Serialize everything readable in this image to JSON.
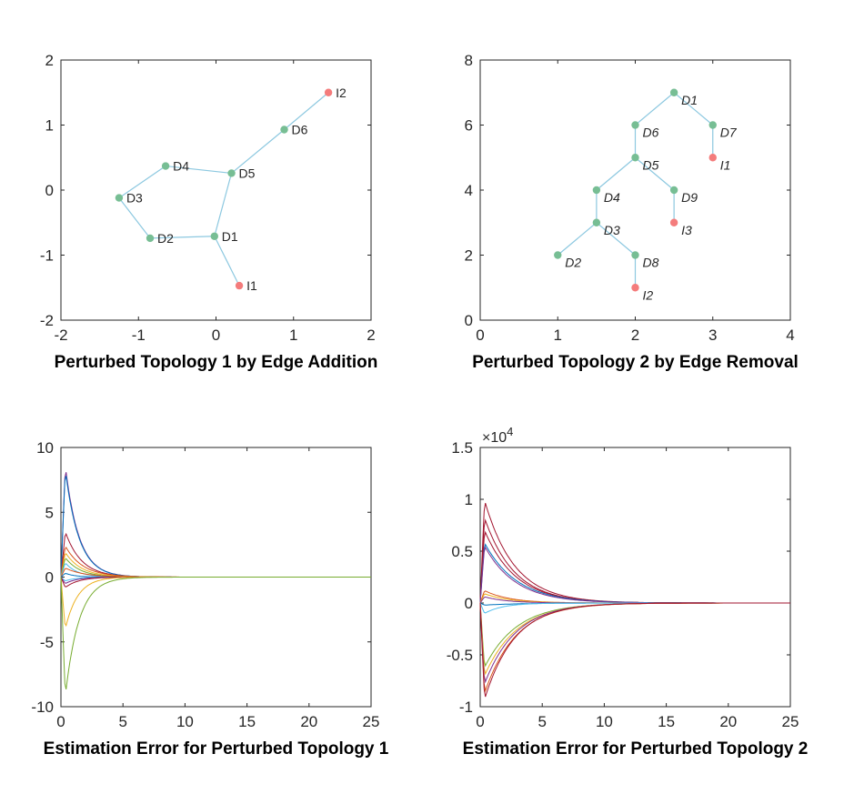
{
  "chart_data": [
    {
      "type": "scatter",
      "title": "Perturbed Topology 1 by Edge Addition",
      "xlim": [
        -2,
        2
      ],
      "ylim": [
        -2,
        2
      ],
      "xticks": [
        "-2",
        "-1",
        "0",
        "1",
        "2"
      ],
      "yticks": [
        "-2",
        "-1",
        "0",
        "1",
        "2"
      ],
      "node_color": "#77BE94",
      "input_color": "#F47C7C",
      "edge_color": "#8CC8E0",
      "nodes": [
        {
          "label": "I2",
          "x": 1.45,
          "y": 1.5,
          "kind": "input"
        },
        {
          "label": "D6",
          "x": 0.88,
          "y": 0.93,
          "kind": "node"
        },
        {
          "label": "D5",
          "x": 0.2,
          "y": 0.26,
          "kind": "node"
        },
        {
          "label": "D4",
          "x": -0.65,
          "y": 0.37,
          "kind": "node"
        },
        {
          "label": "D3",
          "x": -1.25,
          "y": -0.12,
          "kind": "node"
        },
        {
          "label": "D2",
          "x": -0.85,
          "y": -0.74,
          "kind": "node"
        },
        {
          "label": "D1",
          "x": -0.02,
          "y": -0.71,
          "kind": "node"
        },
        {
          "label": "I1",
          "x": 0.3,
          "y": -1.47,
          "kind": "input"
        }
      ],
      "edges": [
        [
          "I2",
          "D6"
        ],
        [
          "D6",
          "D5"
        ],
        [
          "D5",
          "D4"
        ],
        [
          "D4",
          "D3"
        ],
        [
          "D3",
          "D2"
        ],
        [
          "D2",
          "D1"
        ],
        [
          "D1",
          "D5"
        ],
        [
          "D1",
          "I1"
        ]
      ]
    },
    {
      "type": "scatter",
      "title": "Perturbed Topology 2 by Edge Removal",
      "xlim": [
        0,
        4
      ],
      "ylim": [
        0,
        8
      ],
      "xticks": [
        "0",
        "1",
        "2",
        "3",
        "4"
      ],
      "yticks": [
        "0",
        "2",
        "4",
        "6",
        "8"
      ],
      "node_color": "#77BE94",
      "input_color": "#F47C7C",
      "edge_color": "#8CC8E0",
      "nodes": [
        {
          "label": "D1",
          "x": 2.5,
          "y": 7,
          "kind": "node"
        },
        {
          "label": "D7",
          "x": 3,
          "y": 6,
          "kind": "node"
        },
        {
          "label": "I1",
          "x": 3,
          "y": 5,
          "kind": "input"
        },
        {
          "label": "D6",
          "x": 2,
          "y": 6,
          "kind": "node"
        },
        {
          "label": "D5",
          "x": 2,
          "y": 5,
          "kind": "node"
        },
        {
          "label": "D9",
          "x": 2.5,
          "y": 4,
          "kind": "node"
        },
        {
          "label": "I3",
          "x": 2.5,
          "y": 3,
          "kind": "input"
        },
        {
          "label": "D4",
          "x": 1.5,
          "y": 4,
          "kind": "node"
        },
        {
          "label": "D3",
          "x": 1.5,
          "y": 3,
          "kind": "node"
        },
        {
          "label": "D2",
          "x": 1,
          "y": 2,
          "kind": "node"
        },
        {
          "label": "D8",
          "x": 2,
          "y": 2,
          "kind": "node"
        },
        {
          "label": "I2",
          "x": 2,
          "y": 1,
          "kind": "input"
        }
      ],
      "edges": [
        [
          "D1",
          "D7"
        ],
        [
          "D7",
          "I1"
        ],
        [
          "D1",
          "D6"
        ],
        [
          "D6",
          "D5"
        ],
        [
          "D5",
          "D9"
        ],
        [
          "D9",
          "I3"
        ],
        [
          "D5",
          "D4"
        ],
        [
          "D4",
          "D3"
        ],
        [
          "D3",
          "D2"
        ],
        [
          "D3",
          "D8"
        ],
        [
          "D8",
          "I2"
        ]
      ]
    },
    {
      "type": "line",
      "title": "Estimation Error for Perturbed Topology 1",
      "xlim": [
        0,
        25
      ],
      "ylim": [
        -10,
        10
      ],
      "xticks": [
        "0",
        "5",
        "10",
        "15",
        "20",
        "25"
      ],
      "yticks": [
        "-10",
        "-5",
        "0",
        "5",
        "10"
      ],
      "series": [
        {
          "color": "#7E2F8E",
          "peak": 8.6,
          "tau": 1.1
        },
        {
          "color": "#0072BD",
          "peak": 8.3,
          "tau": 1.1
        },
        {
          "color": "#A2142F",
          "peak": 3.5,
          "tau": 1.3
        },
        {
          "color": "#D95319",
          "peak": 2.4,
          "tau": 1.4
        },
        {
          "color": "#EDB120",
          "peak": 1.9,
          "tau": 1.3
        },
        {
          "color": "#77AC30",
          "peak": 1.5,
          "tau": 1.2
        },
        {
          "color": "#4DBEEE",
          "peak": 1.1,
          "tau": 1.0
        },
        {
          "color": "#D95319",
          "peak": 0.7,
          "tau": 1.5
        },
        {
          "color": "#0072BD",
          "peak": 0.3,
          "tau": 0.8
        },
        {
          "color": "#4DBEEE",
          "peak": -0.3,
          "tau": 0.9
        },
        {
          "color": "#7E2F8E",
          "peak": -0.5,
          "tau": 1.0
        },
        {
          "color": "#A2142F",
          "peak": -0.8,
          "tau": 1.1
        },
        {
          "color": "#EDB120",
          "peak": -4.0,
          "tau": 1.0
        },
        {
          "color": "#77AC30",
          "peak": -9.2,
          "tau": 1.1
        }
      ]
    },
    {
      "type": "line",
      "title": "Estimation Error for Perturbed Topology 2",
      "exponent_label": "×10",
      "exponent_power": "4",
      "xlim": [
        0,
        25
      ],
      "ylim": [
        -1,
        1.5
      ],
      "xticks": [
        "0",
        "5",
        "10",
        "15",
        "20",
        "25"
      ],
      "yticks": [
        "-1",
        "-0.5",
        "0",
        "0.5",
        "1",
        "1.5"
      ],
      "series": [
        {
          "color": "#A2142F",
          "peak": 0.99,
          "tau": 2.4
        },
        {
          "color": "#A2142F",
          "peak": 0.82,
          "tau": 2.4
        },
        {
          "color": "#A2142F",
          "peak": 0.7,
          "tau": 2.5
        },
        {
          "color": "#0072BD",
          "peak": 0.58,
          "tau": 2.6
        },
        {
          "color": "#7E2F8E",
          "peak": 0.55,
          "tau": 2.5
        },
        {
          "color": "#D95319",
          "peak": 0.12,
          "tau": 2.0
        },
        {
          "color": "#EDB120",
          "peak": 0.09,
          "tau": 2.0
        },
        {
          "color": "#7E2F8E",
          "peak": 0.06,
          "tau": 1.8
        },
        {
          "color": "#0072BD",
          "peak": -0.02,
          "tau": 3.0
        },
        {
          "color": "#4DBEEE",
          "peak": -0.1,
          "tau": 1.5
        },
        {
          "color": "#77AC30",
          "peak": -0.62,
          "tau": 2.6
        },
        {
          "color": "#EDB120",
          "peak": -0.7,
          "tau": 2.6
        },
        {
          "color": "#7E2F8E",
          "peak": -0.78,
          "tau": 2.5
        },
        {
          "color": "#D95319",
          "peak": -0.87,
          "tau": 2.5
        },
        {
          "color": "#A2142F",
          "peak": -0.93,
          "tau": 2.4
        }
      ]
    }
  ]
}
